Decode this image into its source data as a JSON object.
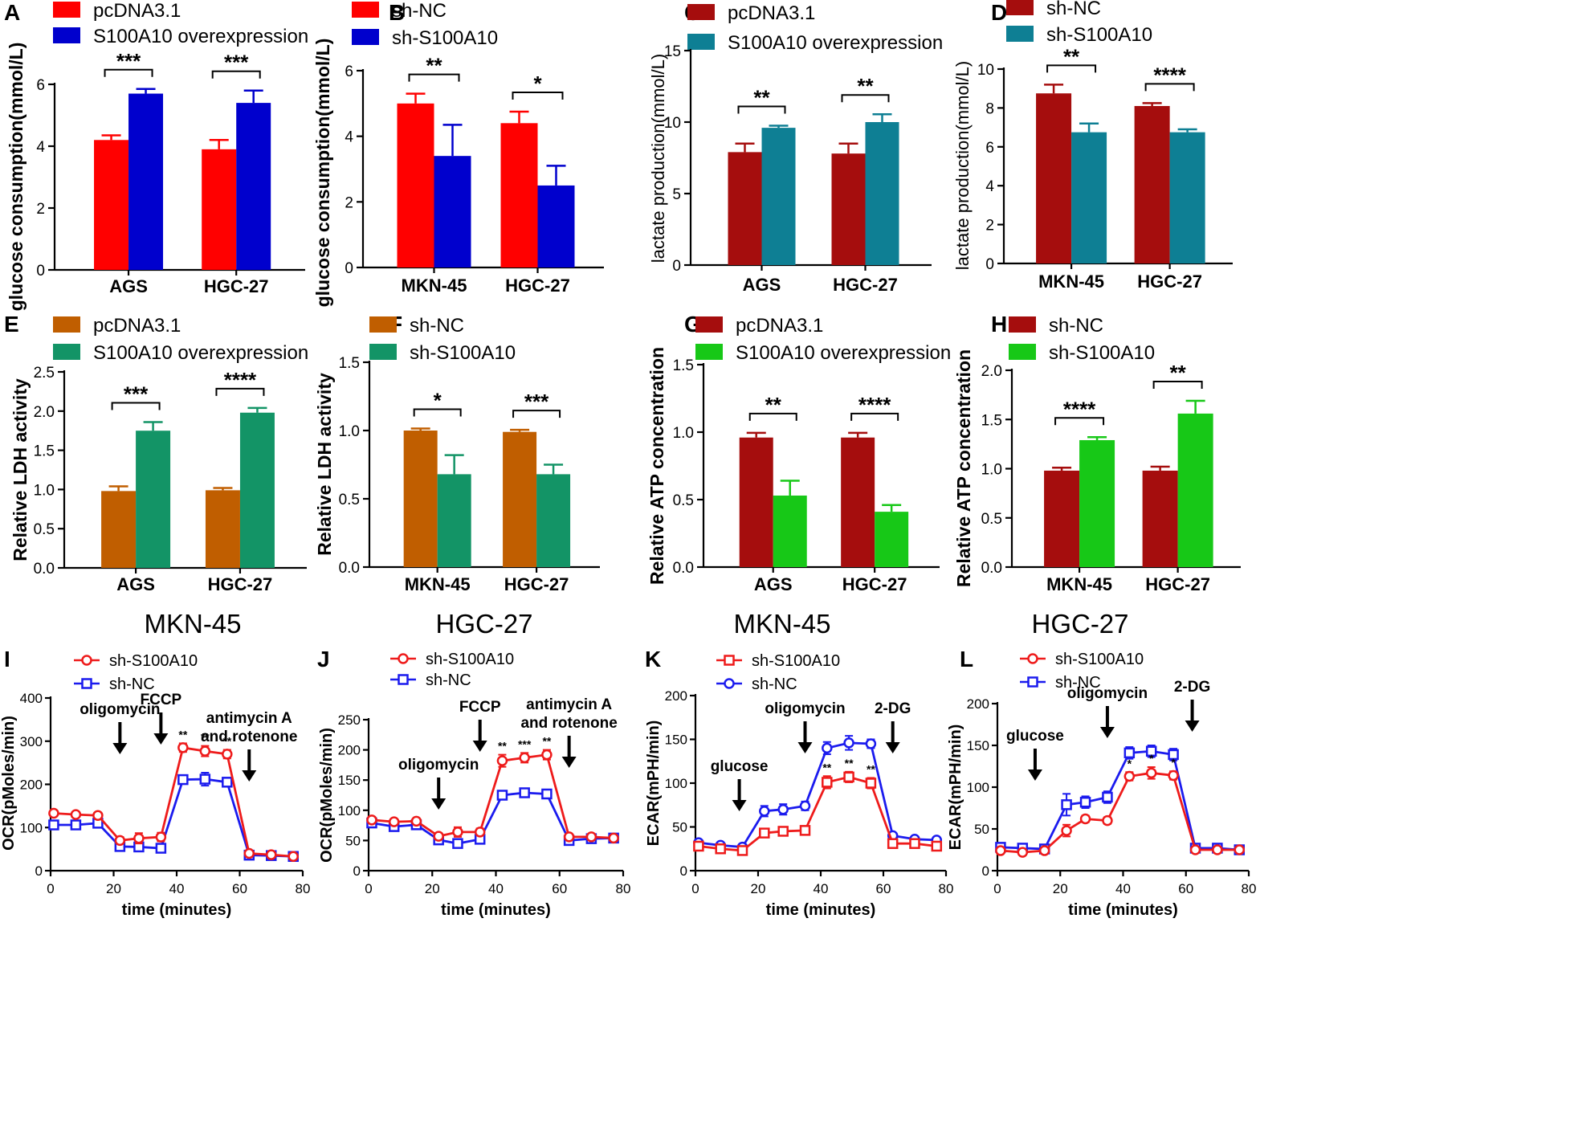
{
  "colors": {
    "red": "#ff0000",
    "blue": "#0000cd",
    "darkred": "#a50d0d",
    "teal": "#0e7f94",
    "orange": "#c05e00",
    "green": "#139466",
    "lime": "#17c817",
    "line_red": "#ee1b1b",
    "line_blue": "#1b1bee"
  },
  "column_titles": [
    "MKN-45",
    "HGC-27",
    "MKN-45",
    "HGC-27"
  ],
  "chart_data": [
    {
      "panel": "A",
      "type": "bar",
      "ylabel": "glucose consumption(mmol/L)",
      "ylim": [
        0,
        6
      ],
      "yticks": [
        "0",
        "2",
        "4",
        "6"
      ],
      "ytick_values": [
        0,
        2,
        4,
        6
      ],
      "categories": [
        "AGS",
        "HGC-27"
      ],
      "legend": [
        "pcDNA3.1",
        "S100A10 overexpression"
      ],
      "series": [
        {
          "name": "pcDNA3.1",
          "color": "#ff0000",
          "values": [
            4.2,
            3.9
          ],
          "errors": [
            0.15,
            0.3
          ]
        },
        {
          "name": "S100A10 overexpression",
          "color": "#0000cd",
          "values": [
            5.7,
            5.4
          ],
          "errors": [
            0.15,
            0.4
          ]
        }
      ],
      "significance": [
        "***",
        "***"
      ]
    },
    {
      "panel": "B",
      "type": "bar",
      "ylabel": "glucose consumption(mmol/L)",
      "ylim": [
        0,
        6
      ],
      "yticks": [
        "0",
        "2",
        "4",
        "6"
      ],
      "ytick_values": [
        0,
        2,
        4,
        6
      ],
      "categories": [
        "MKN-45",
        "HGC-27"
      ],
      "legend": [
        "sh-NC",
        "sh-S100A10"
      ],
      "series": [
        {
          "name": "sh-NC",
          "color": "#ff0000",
          "values": [
            5.0,
            4.4
          ],
          "errors": [
            0.3,
            0.35
          ]
        },
        {
          "name": "sh-S100A10",
          "color": "#0000cd",
          "values": [
            3.4,
            2.5
          ],
          "errors": [
            0.95,
            0.6
          ]
        }
      ],
      "significance": [
        "**",
        "*"
      ]
    },
    {
      "panel": "C",
      "type": "bar",
      "ylabel": "lactate production(mmol/L)",
      "ylim": [
        0,
        15
      ],
      "yticks": [
        "0",
        "5",
        "10",
        "15"
      ],
      "ytick_values": [
        0,
        5,
        10,
        15
      ],
      "categories": [
        "AGS",
        "HGC-27"
      ],
      "legend": [
        "pcDNA3.1",
        "S100A10 overexpression"
      ],
      "series": [
        {
          "name": "pcDNA3.1",
          "color": "#a50d0d",
          "values": [
            7.9,
            7.8
          ],
          "errors": [
            0.6,
            0.7
          ]
        },
        {
          "name": "S100A10 overexpression",
          "color": "#0e7f94",
          "values": [
            9.6,
            10.0
          ],
          "errors": [
            0.15,
            0.55
          ]
        }
      ],
      "significance": [
        "**",
        "**"
      ]
    },
    {
      "panel": "D",
      "type": "bar",
      "ylabel": "lactate production(mmol/L)",
      "ylim": [
        0,
        10
      ],
      "yticks": [
        "0",
        "2",
        "4",
        "6",
        "8",
        "10"
      ],
      "ytick_values": [
        0,
        2,
        4,
        6,
        8,
        10
      ],
      "categories": [
        "MKN-45",
        "HGC-27"
      ],
      "legend": [
        "sh-NC",
        "sh-S100A10"
      ],
      "series": [
        {
          "name": "sh-NC",
          "color": "#a50d0d",
          "values": [
            8.75,
            8.1
          ],
          "errors": [
            0.45,
            0.15
          ]
        },
        {
          "name": "sh-S100A10",
          "color": "#0e7f94",
          "values": [
            6.75,
            6.75
          ],
          "errors": [
            0.45,
            0.15
          ]
        }
      ],
      "significance": [
        "**",
        "****"
      ]
    },
    {
      "panel": "E",
      "type": "bar",
      "ylabel": "Relative LDH activity",
      "ylim": [
        0,
        2.5
      ],
      "yticks": [
        "0.0",
        "0.5",
        "1.0",
        "1.5",
        "2.0",
        "2.5"
      ],
      "ytick_values": [
        0,
        0.5,
        1,
        1.5,
        2,
        2.5
      ],
      "categories": [
        "AGS",
        "HGC-27"
      ],
      "legend": [
        "pcDNA3.1",
        "S100A10 overexpression"
      ],
      "series": [
        {
          "name": "pcDNA3.1",
          "color": "#c05e00",
          "values": [
            0.98,
            0.99
          ],
          "errors": [
            0.06,
            0.03
          ]
        },
        {
          "name": "S100A10 overexpression",
          "color": "#139466",
          "values": [
            1.75,
            1.98
          ],
          "errors": [
            0.11,
            0.06
          ]
        }
      ],
      "significance": [
        "***",
        "****"
      ]
    },
    {
      "panel": "F",
      "type": "bar",
      "ylabel": "Relative LDH activity",
      "ylim": [
        0,
        1.5
      ],
      "yticks": [
        "0.0",
        "0.5",
        "1.0",
        "1.5"
      ],
      "ytick_values": [
        0,
        0.5,
        1,
        1.5
      ],
      "categories": [
        "MKN-45",
        "HGC-27"
      ],
      "legend": [
        "sh-NC",
        "sh-S100A10"
      ],
      "series": [
        {
          "name": "sh-NC",
          "color": "#c05e00",
          "values": [
            1.0,
            0.99
          ],
          "errors": [
            0.015,
            0.015
          ]
        },
        {
          "name": "sh-S100A10",
          "color": "#139466",
          "values": [
            0.68,
            0.68
          ],
          "errors": [
            0.14,
            0.07
          ]
        }
      ],
      "significance": [
        "*",
        "***"
      ]
    },
    {
      "panel": "G",
      "type": "bar",
      "ylabel": "Relative ATP concentration",
      "ylim": [
        0,
        1.5
      ],
      "yticks": [
        "0.0",
        "0.5",
        "1.0",
        "1.5"
      ],
      "ytick_values": [
        0,
        0.5,
        1,
        1.5
      ],
      "categories": [
        "AGS",
        "HGC-27"
      ],
      "legend": [
        "pcDNA3.1",
        "S100A10 overexpression"
      ],
      "series": [
        {
          "name": "pcDNA3.1",
          "color": "#a50d0d",
          "values": [
            0.96,
            0.96
          ],
          "errors": [
            0.035,
            0.035
          ]
        },
        {
          "name": "S100A10 overexpression",
          "color": "#17c817",
          "values": [
            0.53,
            0.41
          ],
          "errors": [
            0.11,
            0.05
          ]
        }
      ],
      "significance": [
        "**",
        "****"
      ]
    },
    {
      "panel": "H",
      "type": "bar",
      "ylabel": "Relative ATP concentration",
      "ylim": [
        0,
        2.0
      ],
      "yticks": [
        "0.0",
        "0.5",
        "1.0",
        "1.5",
        "2.0"
      ],
      "ytick_values": [
        0,
        0.5,
        1,
        1.5,
        2
      ],
      "categories": [
        "MKN-45",
        "HGC-27"
      ],
      "legend": [
        "sh-NC",
        "sh-S100A10"
      ],
      "series": [
        {
          "name": "sh-NC",
          "color": "#a50d0d",
          "values": [
            0.98,
            0.98
          ],
          "errors": [
            0.03,
            0.04
          ]
        },
        {
          "name": "sh-S100A10",
          "color": "#17c817",
          "values": [
            1.29,
            1.56
          ],
          "errors": [
            0.03,
            0.13
          ]
        }
      ],
      "significance": [
        "****",
        "**"
      ]
    },
    {
      "panel": "I",
      "type": "line",
      "title": "MKN-45",
      "ylabel": "OCR(pMoles/min)",
      "xlabel": "time (minutes)",
      "xlim": [
        0,
        80
      ],
      "xticks": [
        "0",
        "20",
        "40",
        "60",
        "80"
      ],
      "xtick_values": [
        0,
        20,
        40,
        60,
        80
      ],
      "ylim": [
        0,
        400
      ],
      "yticks": [
        "0",
        "100",
        "200",
        "300",
        "400"
      ],
      "ytick_values": [
        0,
        100,
        200,
        300,
        400
      ],
      "x": [
        1,
        8,
        15,
        22,
        28,
        35,
        42,
        49,
        56,
        63,
        70,
        77
      ],
      "series": [
        {
          "name": "sh-S100A10",
          "marker": "circle",
          "color": "#ee1b1b",
          "values": [
            133,
            130,
            128,
            70,
            75,
            78,
            285,
            277,
            270,
            40,
            37,
            33
          ],
          "errors": [
            4,
            4,
            4,
            8,
            12,
            10,
            10,
            12,
            10,
            4,
            3,
            3
          ]
        },
        {
          "name": "sh-NC",
          "marker": "square",
          "color": "#1b1bee",
          "values": [
            106,
            106,
            110,
            56,
            55,
            52,
            211,
            212,
            205,
            36,
            35,
            33
          ],
          "errors": [
            4,
            4,
            5,
            5,
            7,
            8,
            10,
            15,
            10,
            3,
            3,
            3
          ]
        }
      ],
      "stars": [
        {
          "x": 42,
          "label": "**"
        },
        {
          "x": 49,
          "label": "**"
        },
        {
          "x": 56,
          "label": "**"
        }
      ],
      "annotations": [
        {
          "label": "oligomycin",
          "x": 22,
          "lines": [
            "oligomycin"
          ]
        },
        {
          "label": "FCCP",
          "x": 35,
          "lines": [
            "FCCP"
          ]
        },
        {
          "label": "antimycin A and rotenone",
          "x": 63,
          "lines": [
            "antimycin A",
            "and rotenone"
          ]
        }
      ]
    },
    {
      "panel": "J",
      "type": "line",
      "title": "HGC-27",
      "ylabel": "OCR(pMoles/min)",
      "xlabel": "time (minutes)",
      "xlim": [
        0,
        80
      ],
      "xticks": [
        "0",
        "20",
        "40",
        "60",
        "80"
      ],
      "xtick_values": [
        0,
        20,
        40,
        60,
        80
      ],
      "ylim": [
        0,
        250
      ],
      "yticks": [
        "0",
        "50",
        "100",
        "150",
        "200",
        "250"
      ],
      "ytick_values": [
        0,
        50,
        100,
        150,
        200,
        250
      ],
      "x": [
        1,
        8,
        15,
        22,
        28,
        35,
        42,
        49,
        56,
        63,
        70,
        77
      ],
      "series": [
        {
          "name": "sh-S100A10",
          "marker": "circle",
          "color": "#ee1b1b",
          "values": [
            84,
            81,
            82,
            57,
            64,
            64,
            182,
            187,
            192,
            56,
            56,
            54
          ],
          "errors": [
            3,
            3,
            3,
            5,
            8,
            6,
            10,
            8,
            8,
            3,
            3,
            3
          ]
        },
        {
          "name": "sh-NC",
          "marker": "square",
          "color": "#1b1bee",
          "values": [
            79,
            73,
            76,
            51,
            45,
            52,
            125,
            129,
            127,
            50,
            53,
            54
          ],
          "errors": [
            3,
            3,
            3,
            4,
            6,
            5,
            7,
            6,
            7,
            3,
            3,
            3
          ]
        }
      ],
      "stars": [
        {
          "x": 42,
          "label": "**"
        },
        {
          "x": 49,
          "label": "***"
        },
        {
          "x": 56,
          "label": "**"
        }
      ],
      "annotations": [
        {
          "label": "oligomycin",
          "x": 22,
          "lines": [
            "oligomycin"
          ]
        },
        {
          "label": "FCCP",
          "x": 35,
          "lines": [
            "FCCP"
          ]
        },
        {
          "label": "antimycin A and rotenone",
          "x": 63,
          "lines": [
            "antimycin A",
            "and rotenone"
          ]
        }
      ]
    },
    {
      "panel": "K",
      "type": "line",
      "title": "MKN-45",
      "ylabel": "ECAR(mPH/min)",
      "xlabel": "time (minutes)",
      "xlim": [
        0,
        80
      ],
      "xticks": [
        "0",
        "20",
        "40",
        "60",
        "80"
      ],
      "xtick_values": [
        0,
        20,
        40,
        60,
        80
      ],
      "ylim": [
        0,
        200
      ],
      "yticks": [
        "0",
        "50",
        "100",
        "150",
        "200"
      ],
      "ytick_values": [
        0,
        50,
        100,
        150,
        200
      ],
      "x": [
        1,
        8,
        15,
        22,
        28,
        35,
        42,
        49,
        56,
        63,
        70,
        77
      ],
      "series": [
        {
          "name": "sh-S100A10",
          "marker": "square",
          "color": "#ee1b1b",
          "values": [
            28,
            25,
            23,
            43,
            45,
            46,
            101,
            107,
            100,
            31,
            31,
            28
          ],
          "errors": [
            2,
            2,
            2,
            4,
            4,
            5,
            7,
            6,
            6,
            3,
            3,
            3
          ]
        },
        {
          "name": "sh-NC",
          "marker": "circle",
          "color": "#1b1bee",
          "values": [
            32,
            29,
            27,
            68,
            70,
            74,
            140,
            146,
            145,
            40,
            36,
            35
          ],
          "errors": [
            2,
            2,
            2,
            6,
            6,
            5,
            7,
            8,
            5,
            3,
            3,
            3
          ]
        }
      ],
      "stars": [
        {
          "x": 42,
          "label": "**"
        },
        {
          "x": 49,
          "label": "**"
        },
        {
          "x": 56,
          "label": "**"
        }
      ],
      "annotations": [
        {
          "label": "glucose",
          "x": 14,
          "lines": [
            "glucose"
          ]
        },
        {
          "label": "oligomycin",
          "x": 35,
          "lines": [
            "oligomycin"
          ]
        },
        {
          "label": "2-DG",
          "x": 63,
          "lines": [
            "2-DG"
          ]
        }
      ]
    },
    {
      "panel": "L",
      "type": "line",
      "title": "HGC-27",
      "ylabel": "ECAR(mPH/min)",
      "xlabel": "time (minutes)",
      "xlim": [
        0,
        80
      ],
      "xticks": [
        "0",
        "20",
        "40",
        "60",
        "80"
      ],
      "xtick_values": [
        0,
        20,
        40,
        60,
        80
      ],
      "ylim": [
        0,
        200
      ],
      "yticks": [
        "0",
        "50",
        "100",
        "150",
        "200"
      ],
      "ytick_values": [
        0,
        50,
        100,
        150,
        200
      ],
      "x": [
        1,
        8,
        15,
        22,
        28,
        35,
        42,
        49,
        56,
        63,
        70,
        77
      ],
      "series": [
        {
          "name": "sh-S100A10",
          "marker": "circle",
          "color": "#ee1b1b",
          "values": [
            24,
            22,
            24,
            48,
            62,
            60,
            113,
            117,
            114,
            25,
            25,
            25
          ],
          "errors": [
            2,
            2,
            2,
            7,
            4,
            4,
            5,
            7,
            5,
            2,
            2,
            2
          ]
        },
        {
          "name": "sh-NC",
          "marker": "square",
          "color": "#1b1bee",
          "values": [
            28,
            27,
            26,
            79,
            82,
            88,
            141,
            143,
            139,
            27,
            27,
            25
          ],
          "errors": [
            2,
            2,
            2,
            13,
            7,
            7,
            7,
            7,
            7,
            2,
            2,
            2
          ]
        }
      ],
      "stars": [
        {
          "x": 42,
          "label": "*"
        },
        {
          "x": 49,
          "label": "*"
        },
        {
          "x": 56,
          "label": "*"
        }
      ],
      "annotations": [
        {
          "label": "glucose",
          "x": 12,
          "lines": [
            "glucose"
          ]
        },
        {
          "label": "oligomycin",
          "x": 35,
          "lines": [
            "oligomycin"
          ]
        },
        {
          "label": "2-DG",
          "x": 62,
          "lines": [
            "2-DG"
          ]
        }
      ]
    }
  ]
}
